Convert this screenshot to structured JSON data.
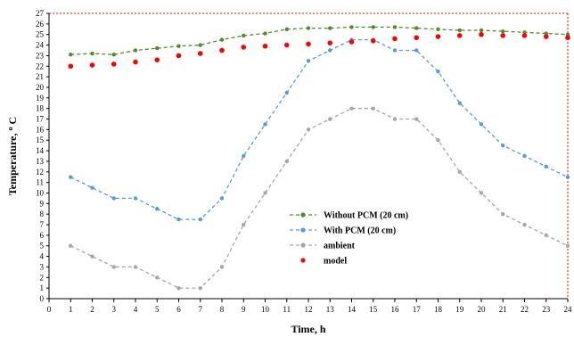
{
  "chart_data": {
    "type": "line",
    "title": "",
    "xlabel": "Time, h",
    "ylabel": "Temperature, oC",
    "xlim": [
      0,
      24
    ],
    "ylim": [
      0,
      27
    ],
    "x_ticks": [
      0,
      1,
      2,
      3,
      4,
      5,
      6,
      7,
      8,
      9,
      10,
      11,
      12,
      13,
      14,
      15,
      16,
      17,
      18,
      19,
      20,
      21,
      22,
      23,
      24
    ],
    "y_ticks": [
      0,
      1,
      2,
      3,
      4,
      5,
      6,
      7,
      8,
      9,
      10,
      11,
      12,
      13,
      14,
      15,
      16,
      17,
      18,
      19,
      20,
      21,
      22,
      23,
      24,
      25,
      26,
      27
    ],
    "grid": false,
    "legend_position": "center-right",
    "x": [
      1,
      2,
      3,
      4,
      5,
      6,
      7,
      8,
      9,
      10,
      11,
      12,
      13,
      14,
      15,
      16,
      17,
      18,
      19,
      20,
      21,
      22,
      23,
      24
    ],
    "series": [
      {
        "name": "Without PCM  (20 cm)",
        "color": "#4e8c2e",
        "style": "dashed-dot",
        "values": [
          23.1,
          23.2,
          23.1,
          23.5,
          23.7,
          23.9,
          24.0,
          24.5,
          24.9,
          25.1,
          25.5,
          25.6,
          25.6,
          25.7,
          25.7,
          25.7,
          25.6,
          25.5,
          25.4,
          25.4,
          25.3,
          25.2,
          25.1,
          25.0
        ]
      },
      {
        "name": "With PCM (20 cm)",
        "color": "#5b9bd5",
        "style": "dashed-dot",
        "values": [
          11.5,
          10.5,
          9.5,
          9.5,
          8.5,
          7.5,
          7.5,
          9.5,
          13.5,
          16.5,
          19.5,
          22.5,
          23.5,
          24.5,
          24.5,
          23.5,
          23.5,
          21.5,
          18.5,
          16.5,
          14.5,
          13.5,
          12.5,
          11.5
        ]
      },
      {
        "name": "ambient",
        "color": "#a6a6a6",
        "style": "dashed-dot",
        "values": [
          5,
          4,
          3,
          3,
          2,
          1,
          1,
          3,
          7,
          10,
          13,
          16,
          17,
          18,
          18,
          17,
          17,
          15,
          12,
          10,
          8,
          7,
          6,
          5
        ]
      },
      {
        "name": "model",
        "color": "#ff0000",
        "style": "markers",
        "values": [
          22.0,
          22.1,
          22.2,
          22.4,
          22.6,
          23.0,
          23.2,
          23.5,
          23.8,
          23.9,
          24.0,
          24.1,
          24.2,
          24.3,
          24.4,
          24.6,
          24.7,
          24.8,
          24.9,
          25.0,
          24.9,
          24.9,
          24.8,
          24.7
        ]
      }
    ]
  },
  "axis_title_y": {
    "main": "Temperature, ",
    "sup": "o",
    "unit": " C"
  }
}
